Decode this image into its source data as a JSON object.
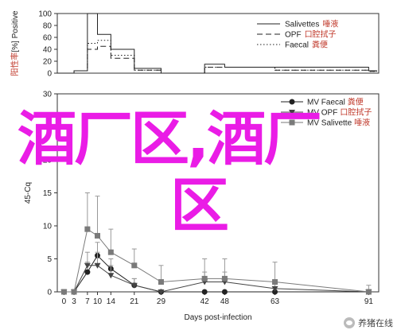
{
  "chart_data": [
    {
      "type": "line",
      "step": true,
      "ylabel_parts": [
        "阳性率",
        "[%] Positive"
      ],
      "yticks": [
        0,
        20,
        40,
        60,
        80,
        100
      ],
      "ylim": [
        0,
        100
      ],
      "xlim": [
        -2,
        94
      ],
      "series": [
        {
          "name": "Salivettes",
          "name_suffix": "唾液",
          "style": "solid",
          "x": [
            -2,
            3,
            7,
            10,
            14,
            21,
            29,
            42,
            48,
            63,
            91
          ],
          "y": [
            0,
            4,
            100,
            65,
            40,
            8,
            0,
            15,
            10,
            10,
            4
          ]
        },
        {
          "name": "OPF",
          "name_suffix": "口腔拭子",
          "style": "dash",
          "x": [
            -2,
            3,
            7,
            10,
            14,
            21,
            29,
            42,
            48,
            63,
            91
          ],
          "y": [
            0,
            4,
            40,
            45,
            25,
            5,
            0,
            10,
            10,
            5,
            3
          ]
        },
        {
          "name": "Faecal",
          "name_suffix": "粪便",
          "style": "dot",
          "x": [
            -2,
            3,
            7,
            10,
            14,
            21,
            29,
            42,
            48,
            63,
            91
          ],
          "y": [
            0,
            4,
            50,
            55,
            30,
            5,
            0,
            10,
            10,
            5,
            3
          ]
        }
      ]
    },
    {
      "type": "line",
      "ylabel": "45-Cq",
      "xlabel": "Days post-infection",
      "yticks": [
        0,
        5,
        10,
        15,
        20,
        25,
        30
      ],
      "ylim": [
        0,
        30
      ],
      "xlim": [
        -2,
        94
      ],
      "xticks": [
        0,
        3,
        7,
        10,
        14,
        21,
        29,
        42,
        48,
        63,
        91
      ],
      "series": [
        {
          "name": "MV Faecal",
          "name_suffix": "粪便",
          "marker": "circle",
          "x": [
            0,
            3,
            7,
            10,
            14,
            21,
            29,
            42,
            48,
            63,
            91
          ],
          "y": [
            0,
            0,
            3,
            5.5,
            3.5,
            1,
            0,
            0,
            0,
            0,
            0
          ],
          "err": [
            0,
            0,
            1.5,
            2,
            1.5,
            1,
            0,
            0,
            0,
            0,
            0
          ]
        },
        {
          "name": "MV OPF",
          "name_suffix": "口腔拭子",
          "marker": "triangle",
          "x": [
            0,
            3,
            7,
            10,
            14,
            21,
            29,
            42,
            48,
            63,
            91
          ],
          "y": [
            0,
            0,
            4,
            4,
            2.5,
            1,
            0,
            1.5,
            1.5,
            0.5,
            0
          ],
          "err": [
            0,
            0,
            2,
            2,
            1.5,
            1,
            0,
            1.5,
            1.5,
            1,
            0
          ]
        },
        {
          "name": "MV Salivette",
          "name_suffix": "唾液",
          "marker": "square",
          "x": [
            0,
            3,
            7,
            10,
            14,
            21,
            29,
            42,
            48,
            63,
            91
          ],
          "y": [
            0,
            0,
            9.5,
            8.5,
            6,
            4,
            1.5,
            2,
            2,
            1.5,
            0
          ],
          "err": [
            0,
            0,
            5.5,
            6,
            3.5,
            2.5,
            2.5,
            3,
            3,
            3,
            1
          ]
        }
      ]
    }
  ],
  "overlay": {
    "line1": "酒厂区,酒厂",
    "line2": "区"
  },
  "watermark": {
    "text": "养猪在线",
    "icon": "wechat-icon"
  }
}
